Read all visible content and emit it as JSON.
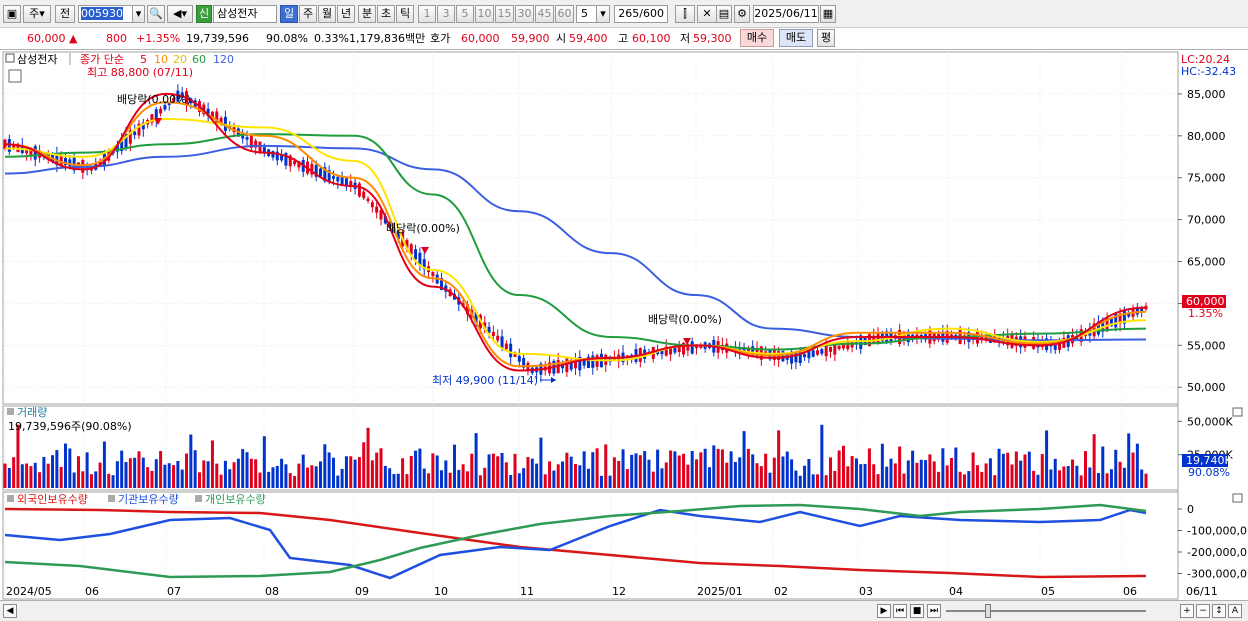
{
  "toolbar": {
    "menu_btn": "주",
    "type_btn": "전",
    "code": "005930",
    "name_badge": "신",
    "stock_name": "삼성전자",
    "periods": [
      "일",
      "주",
      "월",
      "년",
      "분",
      "초",
      "틱"
    ],
    "numbers": [
      "1",
      "3",
      "5",
      "10",
      "15",
      "30",
      "45",
      "60"
    ],
    "interval_value": "5",
    "count_value": "265",
    "count_total": "/600",
    "date": "2025/06/11"
  },
  "quote": {
    "price": "60,000",
    "arrow": "▲",
    "change": "800",
    "change_pct": "+1.35%",
    "volume": "19,739,596",
    "vol_ratio": "90.08%",
    "turnover": "0.33%",
    "amount": "1,179,836백만",
    "ask_label": "호가",
    "ask": "60,000",
    "bid": "59,900",
    "open_label": "시",
    "open": "59,400",
    "high_label": "고",
    "high": "60,100",
    "low_label": "저",
    "low": "59,300",
    "buy": "매수",
    "sell": "매도",
    "eval": "평"
  },
  "chart_labels": {
    "stock_tag": "삼성전자",
    "ma_title": "종가 단순",
    "ma_periods": [
      "5",
      "10",
      "20",
      "60",
      "120"
    ],
    "high_mark": "최고 88,800 (07/11)",
    "low_mark": "최저 49,900 (11/14)",
    "div1": "배당락(0.00%)",
    "div2": "배당락(0.00%)",
    "div3": "배당락(0.00%)",
    "lc": "LC:20.24",
    "hc": "HC:-32.43",
    "cur_price": "60,000",
    "cur_pct": "1.35%",
    "vol_title": "거래량",
    "vol_value": "19,739,596주(90.08%)",
    "vol_cur": "19,740K",
    "vol_pct": "90.08%",
    "ind_titles": [
      "외국인보유수량",
      "기관보유수량",
      "개인보유수량"
    ]
  },
  "axes": {
    "price_ticks": [
      "85,000",
      "80,000",
      "75,000",
      "70,000",
      "65,000",
      "60,000",
      "55,000",
      "50,000"
    ],
    "vol_ticks": [
      "50,000K",
      "25,000K"
    ],
    "hold_ticks": [
      "0",
      "-100,000,0",
      "-200,000,0",
      "-300,000,0"
    ],
    "months": [
      "2024/05",
      "06",
      "07",
      "08",
      "09",
      "10",
      "11",
      "12",
      "2025/01",
      "02",
      "03",
      "04",
      "05",
      "06",
      "06/11"
    ]
  },
  "colors": {
    "up": "#e0001b",
    "down": "#0033cc",
    "ma5": "#e0001b",
    "ma10": "#ff8c00",
    "ma20": "#ffe400",
    "ma60": "#1e9e3c",
    "ma120": "#3a5fe0",
    "foreign": "#d81818",
    "inst": "#1e4fe0",
    "indiv": "#2e9a55"
  },
  "chart_data": {
    "type": "line",
    "title": "",
    "x": [
      "2024/05",
      "06",
      "07",
      "08",
      "09",
      "10",
      "11",
      "12",
      "2025/01",
      "02",
      "03",
      "04",
      "05",
      "06"
    ],
    "ylim": [
      48000,
      90000
    ],
    "series": [
      {
        "name": "5",
        "values": [
          79000,
          76000,
          85000,
          78000,
          74000,
          62000,
          52000,
          53500,
          55000,
          53500,
          56000,
          56000,
          55000,
          59500
        ]
      },
      {
        "name": "10",
        "values": [
          79000,
          76500,
          84000,
          80000,
          75000,
          63000,
          52500,
          53500,
          55000,
          53800,
          56500,
          56500,
          55200,
          59000
        ]
      },
      {
        "name": "20",
        "values": [
          78500,
          77500,
          82000,
          81000,
          77000,
          64000,
          54000,
          53200,
          55000,
          54000,
          55500,
          57000,
          55400,
          58000
        ]
      },
      {
        "name": "60",
        "values": [
          77500,
          78000,
          79000,
          80200,
          80000,
          73000,
          61000,
          56000,
          55000,
          54500,
          55200,
          56000,
          56400,
          57000
        ]
      },
      {
        "name": "120",
        "values": [
          75500,
          76300,
          77500,
          78800,
          78500,
          76000,
          71000,
          66000,
          61000,
          57000,
          56000,
          55800,
          55600,
          55700
        ]
      }
    ]
  }
}
